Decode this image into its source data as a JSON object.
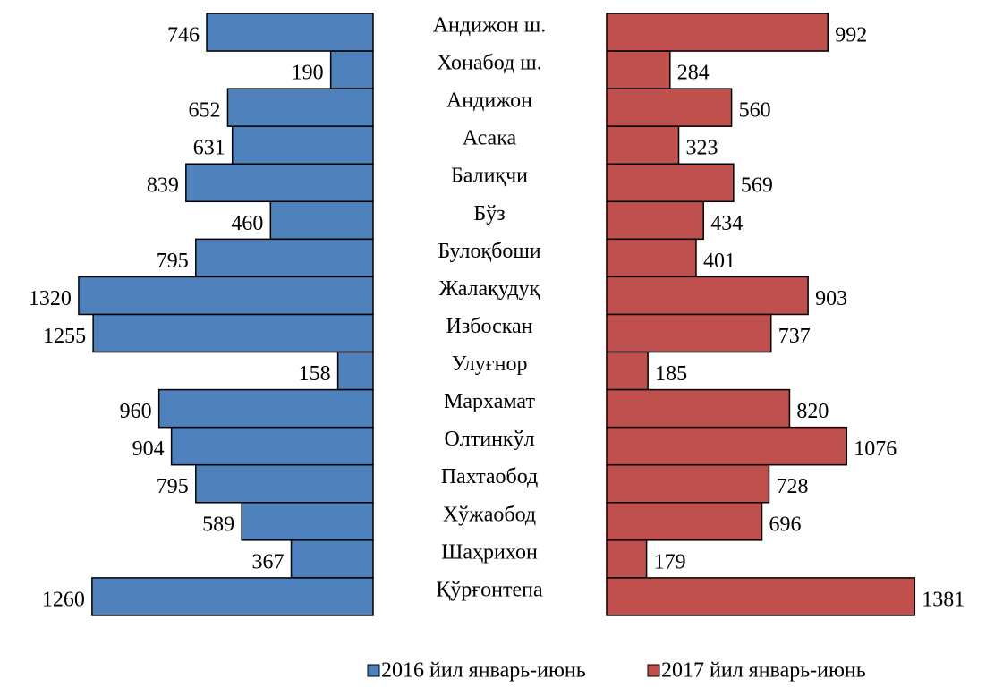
{
  "chart_data": {
    "type": "butterfly-bar",
    "categories": [
      "Андижон ш.",
      "Хонабод ш.",
      "Андижон",
      "Асака",
      "Балиқчи",
      "Бўз",
      "Булоқбоши",
      "Жалақудуқ",
      "Избоскан",
      "Улуғнор",
      "Мархамат",
      "Олтинкўл",
      "Пахтаобод",
      "Хўжаобод",
      "Шаҳрихон",
      "Қўрғонтепа"
    ],
    "series": [
      {
        "name": "2016 йил январь-июнь",
        "color": "#4f81bd",
        "values": [
          746,
          190,
          652,
          631,
          839,
          460,
          795,
          1320,
          1255,
          158,
          960,
          904,
          795,
          589,
          367,
          1260
        ]
      },
      {
        "name": "2017 йил январь-июнь",
        "color": "#c0504d",
        "values": [
          992,
          284,
          560,
          323,
          569,
          434,
          401,
          903,
          737,
          185,
          820,
          1076,
          728,
          696,
          179,
          1381
        ]
      }
    ]
  }
}
